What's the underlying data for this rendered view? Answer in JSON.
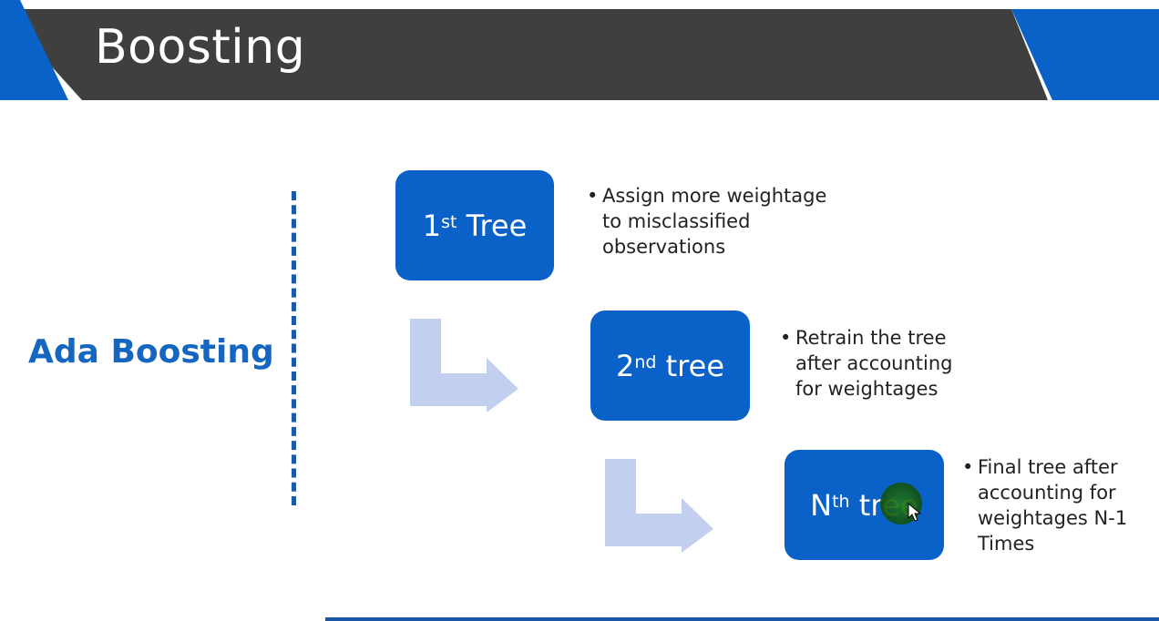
{
  "slide": {
    "title": "Boosting",
    "section_label": "Ada Boosting"
  },
  "trees": [
    {
      "base": "1",
      "sup": "st",
      "rest": " Tree"
    },
    {
      "base": "2",
      "sup": "nd",
      "rest": " tree"
    },
    {
      "base": "N",
      "sup": "th",
      "rest_plain": " tr",
      "rest_highlight": "ee"
    }
  ],
  "bullets": [
    {
      "lines": [
        "Assign more weightage",
        "to misclassified",
        "observations"
      ]
    },
    {
      "lines": [
        "Retrain the tree",
        "after accounting",
        "for weightages"
      ]
    },
    {
      "lines": [
        "Final tree after",
        "accounting for",
        "weightages N-1",
        "Times"
      ]
    }
  ],
  "colors": {
    "header_dark": "#404040",
    "accent_blue": "#0a62c9",
    "arrow_light": "#c3cfee"
  },
  "icons": {
    "bullet": "•",
    "cursor": "mouse-pointer-icon"
  }
}
